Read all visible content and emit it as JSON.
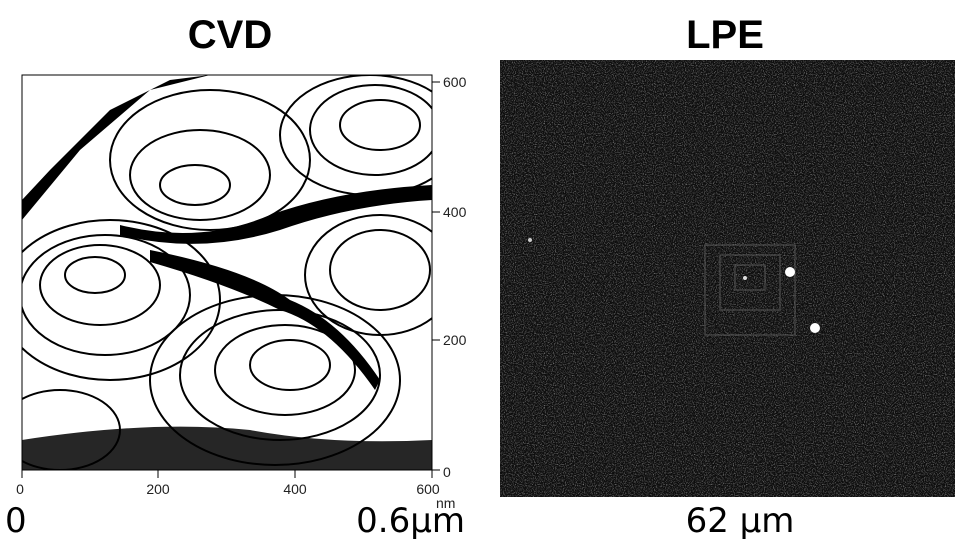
{
  "cvd": {
    "title": "CVD",
    "y_ticks": [
      "600",
      "400",
      "200",
      "0"
    ],
    "x_ticks": [
      "0",
      "200",
      "400",
      "600"
    ],
    "x_unit": "nm"
  },
  "lpe": {
    "title": "LPE"
  },
  "scale_labels": {
    "cvd_start": "0",
    "cvd_end": "0.6μm",
    "lpe": "62 μm"
  }
}
